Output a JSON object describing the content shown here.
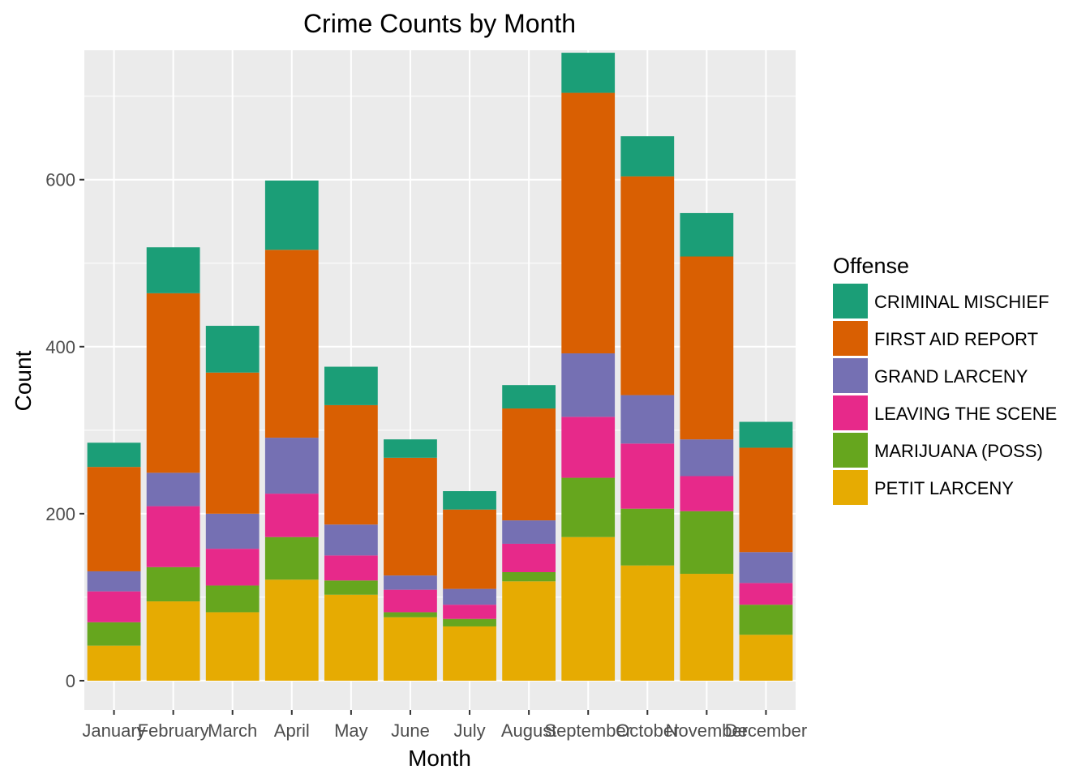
{
  "chart_data": {
    "type": "bar",
    "stacked": true,
    "title": "Crime Counts by Month",
    "xlabel": "Month",
    "ylabel": "Count",
    "ylim": [
      -35,
      755
    ],
    "yticks": [
      0,
      200,
      400,
      600
    ],
    "grid": true,
    "legend_position": "right",
    "legend_title": "Offense",
    "categories": [
      "January",
      "February",
      "March",
      "April",
      "May",
      "June",
      "July",
      "August",
      "September",
      "October",
      "November",
      "December"
    ],
    "series": [
      {
        "name": "PETIT LARCENY",
        "color": "#E6AB02",
        "values": [
          42,
          95,
          82,
          121,
          103,
          76,
          65,
          119,
          172,
          138,
          128,
          55
        ]
      },
      {
        "name": "MARIJUANA (POSS)",
        "color": "#66A61E",
        "values": [
          28,
          41,
          32,
          51,
          17,
          6,
          9,
          11,
          71,
          68,
          75,
          36
        ]
      },
      {
        "name": "LEAVING THE SCENE",
        "color": "#E7298A",
        "values": [
          37,
          73,
          44,
          52,
          30,
          27,
          17,
          34,
          73,
          78,
          42,
          26
        ]
      },
      {
        "name": "GRAND LARCENY",
        "color": "#7570B3",
        "values": [
          24,
          40,
          42,
          67,
          37,
          17,
          19,
          28,
          76,
          58,
          44,
          37
        ]
      },
      {
        "name": "FIRST AID REPORT",
        "color": "#D95F02",
        "values": [
          125,
          215,
          169,
          225,
          143,
          141,
          95,
          134,
          312,
          262,
          219,
          125
        ]
      },
      {
        "name": "CRIMINAL MISCHIEF",
        "color": "#1B9E77",
        "values": [
          29,
          55,
          56,
          83,
          46,
          22,
          22,
          28,
          48,
          48,
          52,
          31
        ]
      }
    ]
  }
}
